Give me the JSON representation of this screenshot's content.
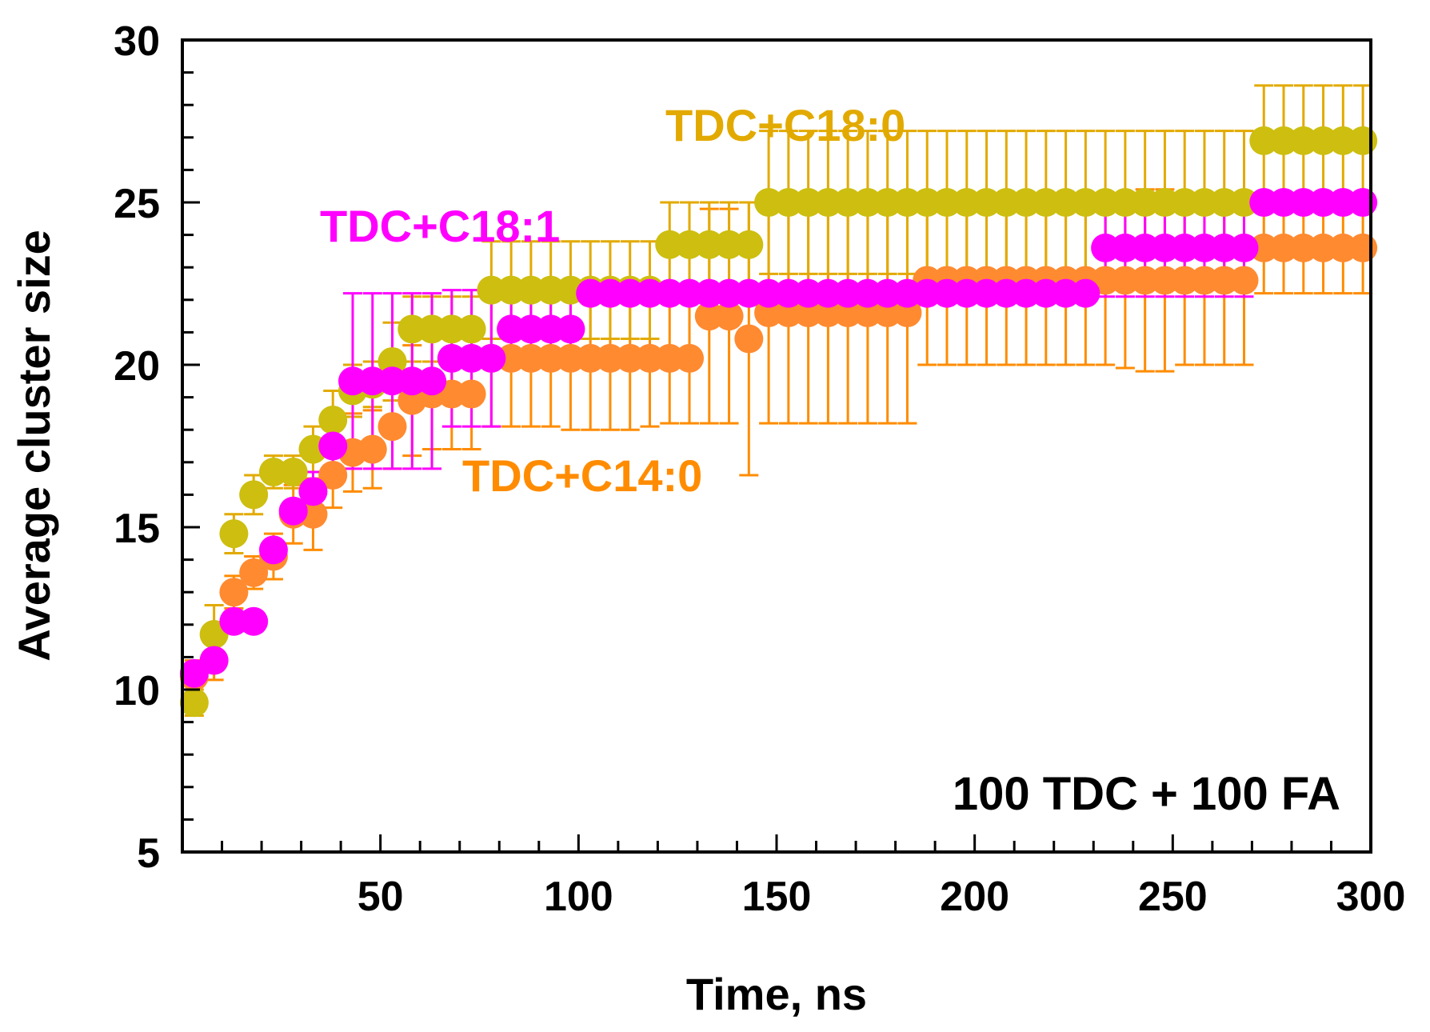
{
  "chart_data": {
    "type": "scatter",
    "title": "",
    "xlabel": "Time, ns",
    "ylabel": "Average cluster size",
    "xlim": [
      0,
      300
    ],
    "ylim": [
      5,
      30
    ],
    "xticks": [
      50,
      100,
      150,
      200,
      250,
      300
    ],
    "yticks": [
      5,
      10,
      15,
      20,
      25,
      30
    ],
    "annotation": "100 TDC + 100 FA",
    "series": [
      {
        "name": "TDC+C18:0",
        "color": "#CDBE10",
        "errcolor": "#E2AA00",
        "x": [
          3,
          8,
          13,
          18,
          23,
          28,
          33,
          38,
          43,
          48,
          53,
          58,
          63,
          68,
          73,
          78,
          83,
          88,
          93,
          98,
          103,
          108,
          113,
          118,
          123,
          128,
          133,
          138,
          143,
          148,
          153,
          158,
          163,
          168,
          173,
          178,
          183,
          188,
          193,
          198,
          203,
          208,
          213,
          218,
          223,
          228,
          233,
          238,
          243,
          248,
          253,
          258,
          263,
          268,
          273,
          278,
          283,
          288,
          293,
          298
        ],
        "y": [
          9.6,
          11.7,
          14.8,
          16.0,
          16.7,
          16.7,
          17.4,
          18.3,
          19.2,
          19.4,
          20.1,
          21.1,
          21.1,
          21.1,
          21.1,
          22.3,
          22.3,
          22.3,
          22.3,
          22.3,
          22.3,
          22.3,
          22.3,
          22.3,
          23.7,
          23.7,
          23.7,
          23.7,
          23.7,
          25.0,
          25.0,
          25.0,
          25.0,
          25.0,
          25.0,
          25.0,
          25.0,
          25.0,
          25.0,
          25.0,
          25.0,
          25.0,
          25.0,
          25.0,
          25.0,
          25.0,
          25.0,
          25.0,
          25.0,
          25.0,
          25.0,
          25.0,
          25.0,
          25.0,
          26.9,
          26.9,
          26.9,
          26.9,
          26.9,
          26.9
        ],
        "err": [
          0.4,
          0.9,
          0.6,
          0.6,
          0.5,
          0.5,
          0.7,
          0.9,
          0.8,
          0.7,
          1.2,
          1.0,
          1.0,
          1.0,
          1.0,
          1.5,
          1.5,
          1.5,
          1.5,
          1.5,
          1.5,
          1.5,
          1.5,
          1.5,
          1.3,
          1.3,
          1.3,
          1.3,
          1.3,
          2.2,
          2.2,
          2.2,
          2.2,
          2.2,
          2.2,
          2.2,
          2.2,
          2.2,
          2.2,
          2.2,
          2.2,
          2.2,
          2.2,
          2.2,
          2.2,
          2.2,
          2.2,
          2.2,
          2.2,
          2.2,
          2.2,
          2.2,
          2.2,
          2.2,
          1.7,
          1.7,
          1.7,
          1.7,
          1.7,
          1.7
        ]
      },
      {
        "name": "TDC+C14:0",
        "color": "#FF8A30",
        "errcolor": "#FF8C00",
        "x": [
          3,
          8,
          13,
          18,
          23,
          28,
          33,
          38,
          43,
          48,
          53,
          58,
          63,
          68,
          73,
          78,
          83,
          88,
          93,
          98,
          103,
          108,
          113,
          118,
          123,
          128,
          133,
          138,
          143,
          148,
          153,
          158,
          163,
          168,
          173,
          178,
          183,
          188,
          193,
          198,
          203,
          208,
          213,
          218,
          223,
          228,
          233,
          238,
          243,
          248,
          253,
          258,
          263,
          268,
          273,
          278,
          283,
          288,
          293,
          298
        ],
        "y": [
          10.4,
          10.9,
          13.0,
          13.6,
          14.1,
          15.4,
          15.4,
          16.6,
          17.3,
          17.4,
          18.1,
          18.9,
          19.1,
          19.1,
          19.1,
          20.2,
          20.2,
          20.2,
          20.2,
          20.2,
          20.2,
          20.2,
          20.2,
          20.2,
          20.2,
          20.2,
          21.5,
          21.5,
          20.8,
          21.6,
          21.6,
          21.6,
          21.6,
          21.6,
          21.6,
          21.6,
          21.6,
          22.6,
          22.6,
          22.6,
          22.6,
          22.6,
          22.6,
          22.6,
          22.6,
          22.6,
          22.6,
          22.6,
          22.6,
          22.6,
          22.6,
          22.6,
          22.6,
          22.6,
          23.6,
          23.6,
          23.6,
          23.6,
          23.6,
          23.6
        ],
        "err": [
          0.5,
          0.6,
          0.5,
          0.5,
          0.7,
          0.9,
          1.1,
          1.0,
          1.2,
          1.2,
          1.3,
          1.7,
          1.7,
          1.7,
          1.7,
          2.1,
          2.1,
          2.1,
          2.1,
          2.2,
          2.2,
          2.2,
          2.2,
          2.1,
          2.0,
          2.0,
          3.3,
          3.3,
          4.2,
          3.4,
          3.4,
          3.4,
          3.4,
          3.4,
          3.4,
          3.4,
          3.4,
          2.6,
          2.6,
          2.6,
          2.6,
          2.6,
          2.6,
          2.6,
          2.6,
          2.6,
          2.6,
          2.7,
          2.8,
          2.8,
          2.6,
          2.6,
          2.6,
          2.6,
          1.4,
          1.4,
          1.4,
          1.4,
          1.4,
          1.4
        ]
      },
      {
        "name": "TDC+C18:1",
        "color": "#FF00FF",
        "errcolor": "#FF00FF",
        "x": [
          3,
          8,
          13,
          18,
          23,
          28,
          33,
          38,
          43,
          48,
          53,
          58,
          63,
          68,
          73,
          78,
          83,
          88,
          93,
          98,
          103,
          108,
          113,
          118,
          123,
          128,
          133,
          138,
          143,
          148,
          153,
          158,
          163,
          168,
          173,
          178,
          183,
          188,
          193,
          198,
          203,
          208,
          213,
          218,
          223,
          228,
          233,
          238,
          243,
          248,
          253,
          258,
          263,
          268,
          273,
          278,
          283,
          288,
          293,
          298
        ],
        "y": [
          10.5,
          10.9,
          12.1,
          12.1,
          14.3,
          15.5,
          16.1,
          17.5,
          19.5,
          19.5,
          19.5,
          19.5,
          19.5,
          20.2,
          20.2,
          20.2,
          21.1,
          21.1,
          21.1,
          21.1,
          22.2,
          22.2,
          22.2,
          22.2,
          22.2,
          22.2,
          22.2,
          22.2,
          22.2,
          22.2,
          22.2,
          22.2,
          22.2,
          22.2,
          22.2,
          22.2,
          22.2,
          22.2,
          22.2,
          22.2,
          22.2,
          22.2,
          22.2,
          22.2,
          22.2,
          22.2,
          23.6,
          23.6,
          23.6,
          23.6,
          23.6,
          23.6,
          23.6,
          23.6,
          25.0,
          25.0,
          25.0,
          25.0,
          25.0,
          25.0
        ],
        "err": [
          0.3,
          0.3,
          0.3,
          0.3,
          0.0,
          0.0,
          0.6,
          0.6,
          2.7,
          2.7,
          2.7,
          2.7,
          2.7,
          2.1,
          2.1,
          2.1,
          1.0,
          1.0,
          1.0,
          1.0,
          0.1,
          0.1,
          0.1,
          0.1,
          0.1,
          0.1,
          0.1,
          0.1,
          0.1,
          0.1,
          0.1,
          0.1,
          0.1,
          0.1,
          0.1,
          0.1,
          0.1,
          0.1,
          0.1,
          0.1,
          0.1,
          0.1,
          0.1,
          0.1,
          0.1,
          0.1,
          1.5,
          1.5,
          1.5,
          1.5,
          1.5,
          1.5,
          1.5,
          1.5,
          0.1,
          0.1,
          0.1,
          0.1,
          0.1,
          0.1
        ]
      }
    ]
  }
}
